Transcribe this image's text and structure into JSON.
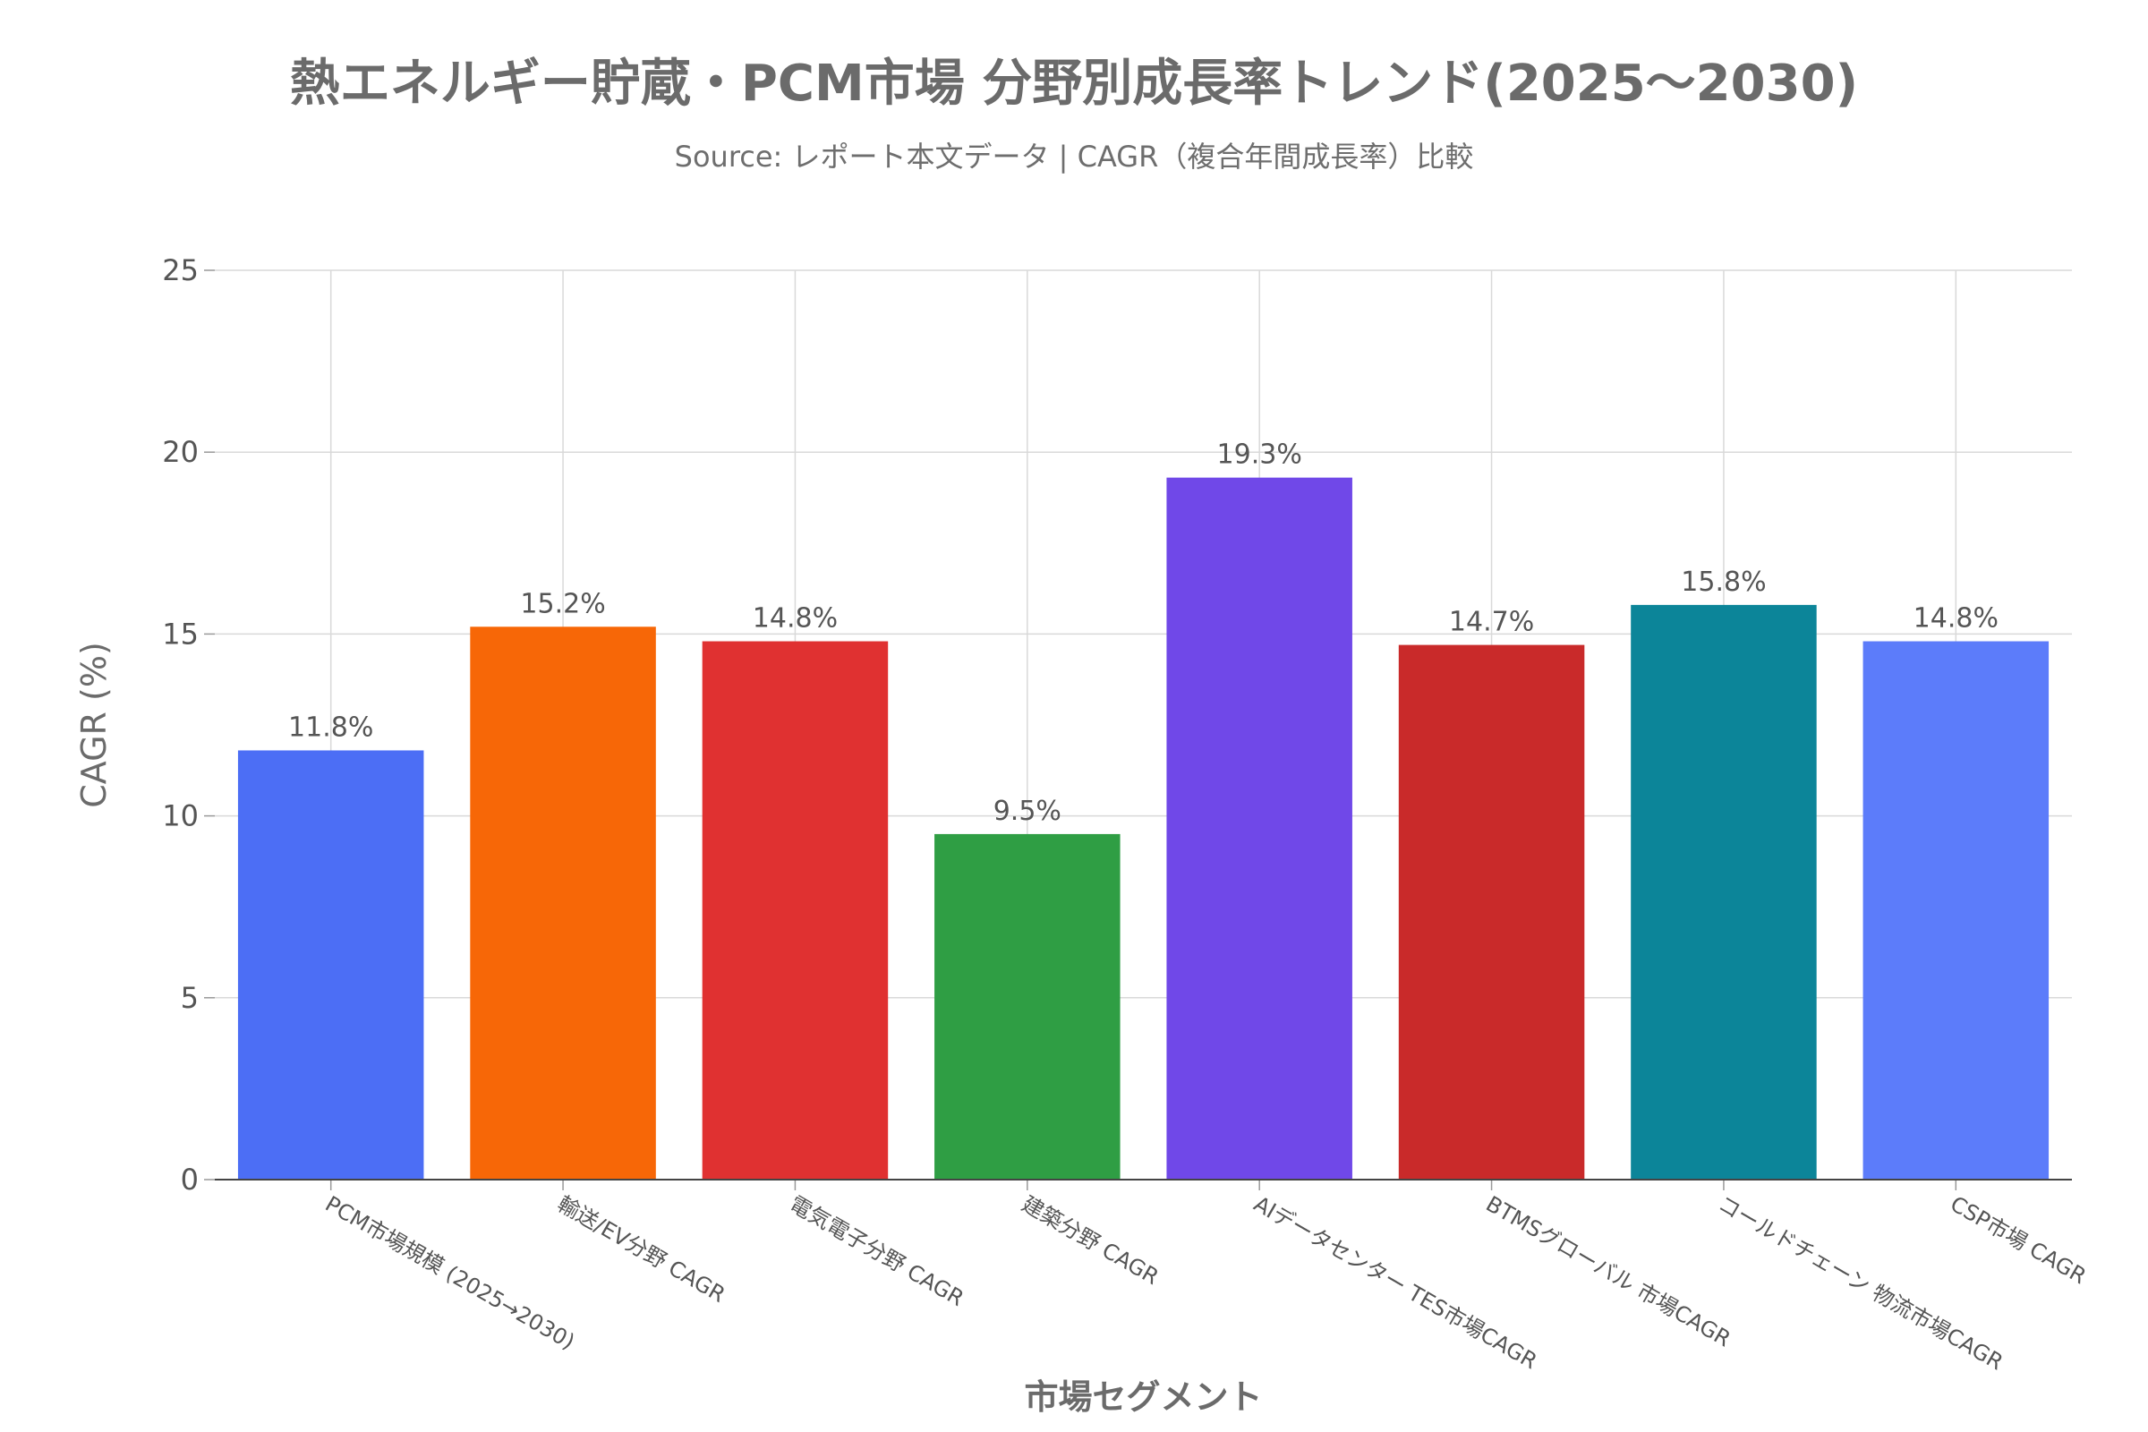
{
  "chart_data": {
    "type": "bar",
    "title": "熱エネルギー貯蔵・PCM市場 分野別成長率トレンド(2025〜2030)",
    "subtitle": "Source: レポート本文データ | CAGR（複合年間成長率）比較",
    "xlabel": "市場セグメント",
    "ylabel": "CAGR (%)",
    "ylim": [
      0,
      25
    ],
    "yticks": [
      0,
      5,
      10,
      15,
      20,
      25
    ],
    "grid": true,
    "categories": [
      "PCM市場規模 (2025→2030)",
      "輸送/EV分野 CAGR",
      "電気電子分野 CAGR",
      "建築分野 CAGR",
      "AIデータセンター TES市場CAGR",
      "BTMSグローバル 市場CAGR",
      "コールドチェーン 物流市場CAGR",
      "CSP市場 CAGR"
    ],
    "values": [
      11.8,
      15.2,
      14.8,
      9.5,
      19.3,
      14.7,
      15.8,
      14.8
    ],
    "data_labels": [
      "11.8%",
      "15.2%",
      "14.8%",
      "9.5%",
      "19.3%",
      "14.7%",
      "15.8%",
      "14.8%"
    ],
    "colors": [
      "#4c6ef5",
      "#f76707",
      "#e03131",
      "#2f9e44",
      "#7048e8",
      "#c92a2a",
      "#0c8599",
      "#5c7cfa"
    ]
  }
}
